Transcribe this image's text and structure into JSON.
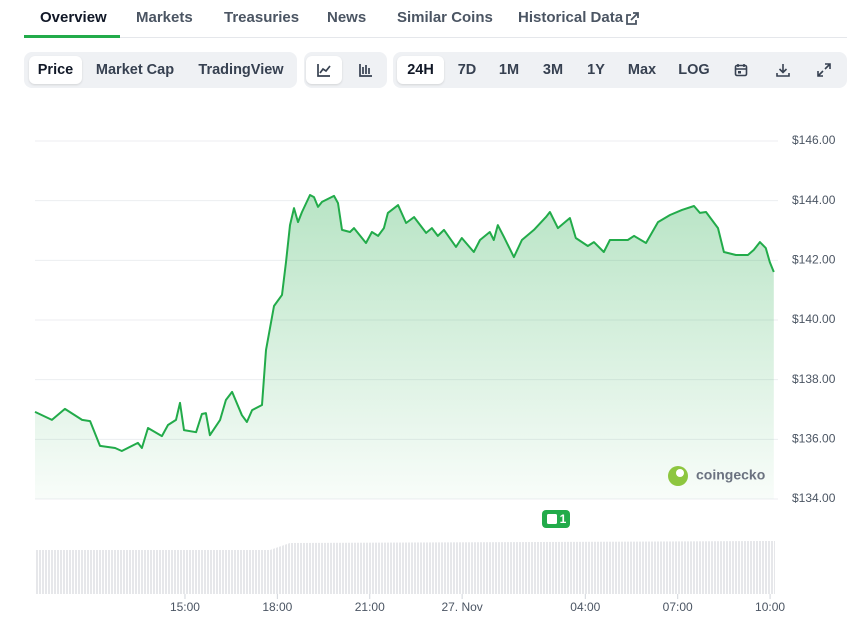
{
  "tabs": [
    "Overview",
    "Markets",
    "Treasuries",
    "News",
    "Similar Coins",
    "Historical Data"
  ],
  "active_tab": 0,
  "views": [
    "Price",
    "Market Cap",
    "TradingView"
  ],
  "active_view": 0,
  "ranges": [
    "24H",
    "7D",
    "1M",
    "3M",
    "1Y",
    "Max",
    "LOG"
  ],
  "active_range": 0,
  "news_badge": "1",
  "watermark": "coingecko",
  "chart_data": {
    "type": "line",
    "color": "#22ab4a",
    "x": [
      10.13,
      10.68,
      11.1,
      11.66,
      11.92,
      12.24,
      12.73,
      12.95,
      13.47,
      13.6,
      13.8,
      14.25,
      14.45,
      14.71,
      14.84,
      14.97,
      15.36,
      15.55,
      15.68,
      15.81,
      16.14,
      16.33,
      16.53,
      16.85,
      17.01,
      17.18,
      17.5,
      17.63,
      17.89,
      18.15,
      18.28,
      18.41,
      18.54,
      18.67,
      18.8,
      19.06,
      19.19,
      19.32,
      19.45,
      19.84,
      19.97,
      20.1,
      20.36,
      20.49,
      20.88,
      21.07,
      21.27,
      21.46,
      21.59,
      21.92,
      22.18,
      22.44,
      22.83,
      23.02,
      23.21,
      23.41,
      23.8,
      23.99,
      24.38,
      24.58,
      24.9,
      25.03,
      25.16,
      25.36,
      25.68,
      25.94,
      26.33,
      26.72,
      26.85,
      27.11,
      27.5,
      27.69,
      28.08,
      28.28,
      28.6,
      28.8,
      29.38,
      29.58,
      29.97,
      30.36,
      30.75,
      31.14,
      31.53,
      31.72,
      31.92,
      32.31,
      32.5,
      32.89,
      33.28,
      33.47,
      33.67,
      33.86,
      33.99,
      34.12
    ],
    "values": [
      136.92,
      136.65,
      137.02,
      136.65,
      136.61,
      135.78,
      135.71,
      135.61,
      135.88,
      135.71,
      136.38,
      136.11,
      136.48,
      136.65,
      137.22,
      136.31,
      136.24,
      136.85,
      136.88,
      136.14,
      136.65,
      137.32,
      137.59,
      136.81,
      136.58,
      136.98,
      137.15,
      138.99,
      140.47,
      140.84,
      141.94,
      143.18,
      143.75,
      143.28,
      143.62,
      144.19,
      144.12,
      143.79,
      143.96,
      144.16,
      143.92,
      143.02,
      142.95,
      143.08,
      142.58,
      142.95,
      142.82,
      143.08,
      143.59,
      143.85,
      143.25,
      143.45,
      142.92,
      143.08,
      142.82,
      143.02,
      142.45,
      142.75,
      142.28,
      142.68,
      142.95,
      142.68,
      143.18,
      142.78,
      142.11,
      142.68,
      143.02,
      143.45,
      143.62,
      143.08,
      143.42,
      142.75,
      142.48,
      142.61,
      142.28,
      142.68,
      142.68,
      142.82,
      142.58,
      143.28,
      143.52,
      143.69,
      143.82,
      143.59,
      143.62,
      143.08,
      142.28,
      142.18,
      142.18,
      142.35,
      142.61,
      142.41,
      141.94,
      141.61
    ],
    "xlim": [
      10.13,
      34.16
    ],
    "xticks": [
      {
        "value": 15,
        "label": "15:00"
      },
      {
        "value": 18,
        "label": "18:00"
      },
      {
        "value": 21,
        "label": "21:00"
      },
      {
        "value": 24,
        "label": "27. Nov"
      },
      {
        "value": 28,
        "label": "04:00"
      },
      {
        "value": 31,
        "label": "07:00"
      },
      {
        "value": 34,
        "label": "10:00"
      }
    ],
    "ylim": [
      134,
      146
    ],
    "yticks": [
      {
        "value": 134,
        "label": "$134.00"
      },
      {
        "value": 136,
        "label": "$136.00"
      },
      {
        "value": 138,
        "label": "$138.00"
      },
      {
        "value": 140,
        "label": "$140.00"
      },
      {
        "value": 142,
        "label": "$142.00"
      },
      {
        "value": 144,
        "label": "$144.00"
      },
      {
        "value": 146,
        "label": "$146.00"
      }
    ],
    "grid": true
  }
}
